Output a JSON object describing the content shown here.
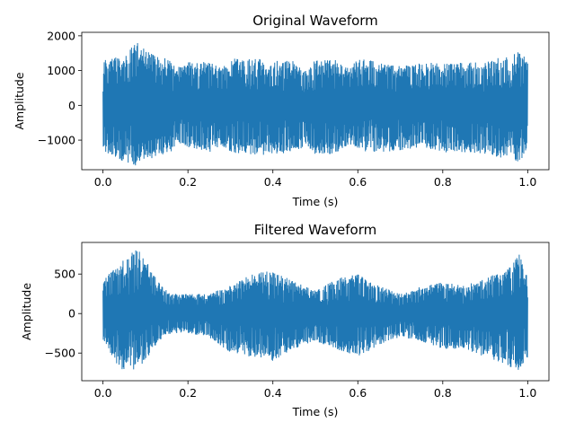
{
  "chart_data": [
    {
      "type": "line",
      "title": "Original Waveform",
      "xlabel": "Time (s)",
      "ylabel": "Amplitude",
      "xlim": [
        -0.05,
        1.05
      ],
      "ylim": [
        -1850,
        2100
      ],
      "xticks": [
        0.0,
        0.2,
        0.4,
        0.6,
        0.8,
        1.0
      ],
      "xtick_labels": [
        "0.0",
        "0.2",
        "0.4",
        "0.6",
        "0.8",
        "1.0"
      ],
      "yticks": [
        -1000,
        0,
        1000,
        2000
      ],
      "ytick_labels": [
        "−1000",
        "0",
        "1000",
        "2000"
      ],
      "series": [
        {
          "color": "#1f77b4",
          "envelope_time": [
            0.0,
            0.02,
            0.05,
            0.08,
            0.1,
            0.15,
            0.18,
            0.2,
            0.25,
            0.28,
            0.3,
            0.35,
            0.4,
            0.45,
            0.48,
            0.5,
            0.55,
            0.58,
            0.6,
            0.65,
            0.7,
            0.75,
            0.8,
            0.85,
            0.9,
            0.95,
            0.98,
            1.0
          ],
          "envelope_upper": [
            1300,
            1350,
            1500,
            1950,
            1600,
            1350,
            1100,
            1250,
            1250,
            1050,
            1350,
            1350,
            1300,
            1300,
            1050,
            1300,
            1300,
            1050,
            1350,
            1250,
            1150,
            1250,
            1200,
            1250,
            1300,
            1400,
            1550,
            1300
          ],
          "envelope_lower": [
            -1300,
            -1450,
            -1650,
            -1750,
            -1550,
            -1450,
            -1100,
            -1200,
            -1350,
            -1150,
            -1350,
            -1450,
            -1400,
            -1350,
            -1150,
            -1400,
            -1400,
            -1100,
            -1350,
            -1350,
            -1300,
            -1200,
            -1350,
            -1350,
            -1400,
            -1550,
            -1650,
            -1250
          ]
        }
      ]
    },
    {
      "type": "line",
      "title": "Filtered Waveform",
      "xlabel": "Time (s)",
      "ylabel": "Amplitude",
      "xlim": [
        -0.05,
        1.05
      ],
      "ylim": [
        -850,
        900
      ],
      "xticks": [
        0.0,
        0.2,
        0.4,
        0.6,
        0.8,
        1.0
      ],
      "xtick_labels": [
        "0.0",
        "0.2",
        "0.4",
        "0.6",
        "0.8",
        "1.0"
      ],
      "yticks": [
        -500,
        0,
        500
      ],
      "ytick_labels": [
        "−500",
        "0",
        "500"
      ],
      "series": [
        {
          "color": "#1f77b4",
          "envelope_time": [
            0.0,
            0.02,
            0.05,
            0.08,
            0.1,
            0.13,
            0.16,
            0.2,
            0.25,
            0.3,
            0.35,
            0.4,
            0.45,
            0.5,
            0.55,
            0.6,
            0.65,
            0.7,
            0.75,
            0.8,
            0.85,
            0.9,
            0.95,
            0.98,
            1.0
          ],
          "envelope_upper": [
            400,
            550,
            700,
            820,
            700,
            400,
            250,
            250,
            250,
            350,
            500,
            550,
            400,
            300,
            450,
            500,
            350,
            250,
            350,
            400,
            350,
            450,
            550,
            750,
            450
          ],
          "envelope_lower": [
            -350,
            -550,
            -750,
            -700,
            -600,
            -350,
            -250,
            -250,
            -300,
            -500,
            -550,
            -600,
            -450,
            -350,
            -450,
            -550,
            -400,
            -300,
            -350,
            -450,
            -450,
            -550,
            -650,
            -750,
            -550
          ]
        }
      ]
    }
  ]
}
